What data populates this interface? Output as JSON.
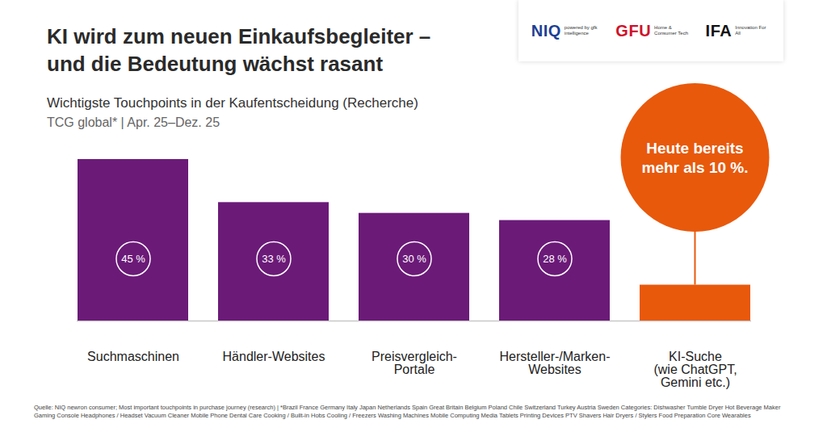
{
  "chart_data": {
    "type": "bar",
    "title": "KI wird zum neuen Einkaufsbegleiter – und die Bedeutung wächst rasant",
    "subtitle": [
      "Wichtigste Touchpoints in der Kaufentscheidung (Recherche)",
      "TCG global* | Apr. 25–Dez. 25"
    ],
    "categories": [
      "Suchmaschinen",
      "Händler-Websites",
      "Preisvergleich-Portale",
      "Hersteller-/Marken-Websites",
      "KI-Suche (wie ChatGPT, Gemini etc.)"
    ],
    "values": [
      45,
      33,
      30,
      28,
      10
    ],
    "value_labels": [
      "45 %",
      "33 %",
      "30 %",
      "28 %",
      null
    ],
    "colors": [
      "#6b1a78",
      "#6b1a78",
      "#6b1a78",
      "#6b1a78",
      "#e8590c"
    ],
    "ylim": [
      0,
      45
    ],
    "data_labels": true,
    "tick_labels": "x",
    "annotations": [
      {
        "text": "Heute bereits mehr als 10 %.",
        "category": "KI-Suche (wie ChatGPT, Gemini etc.)"
      }
    ],
    "logos": [
      {
        "name": "NIQ",
        "tagline": "powered by gfk intelligence"
      },
      {
        "name": "GFU",
        "tagline": "Home & Consumer Tech"
      },
      {
        "name": "IFA",
        "tagline": "Innovation For All"
      }
    ],
    "source": "Quelle: NIQ newron consumer; Most important touchpoints in purchase journey (research) | *Brazil France Germany Italy Japan Netherlands Spain Great Britain Belgium Poland Chile Switzerland Turkey Austria Sweden Categories: Dishwasher Tumble Dryer Hot Beverage Maker Gaming Console Headphones / Headset Vacuum Cleaner Mobile Phone Dental Care Cooking / Built-in Hobs Cooling / Freezers Washing Machines Mobile Computing Media Tablets Printing Devices PTV Shavers Hair Dryers / Stylers Food Preparation Core Wearables"
  }
}
